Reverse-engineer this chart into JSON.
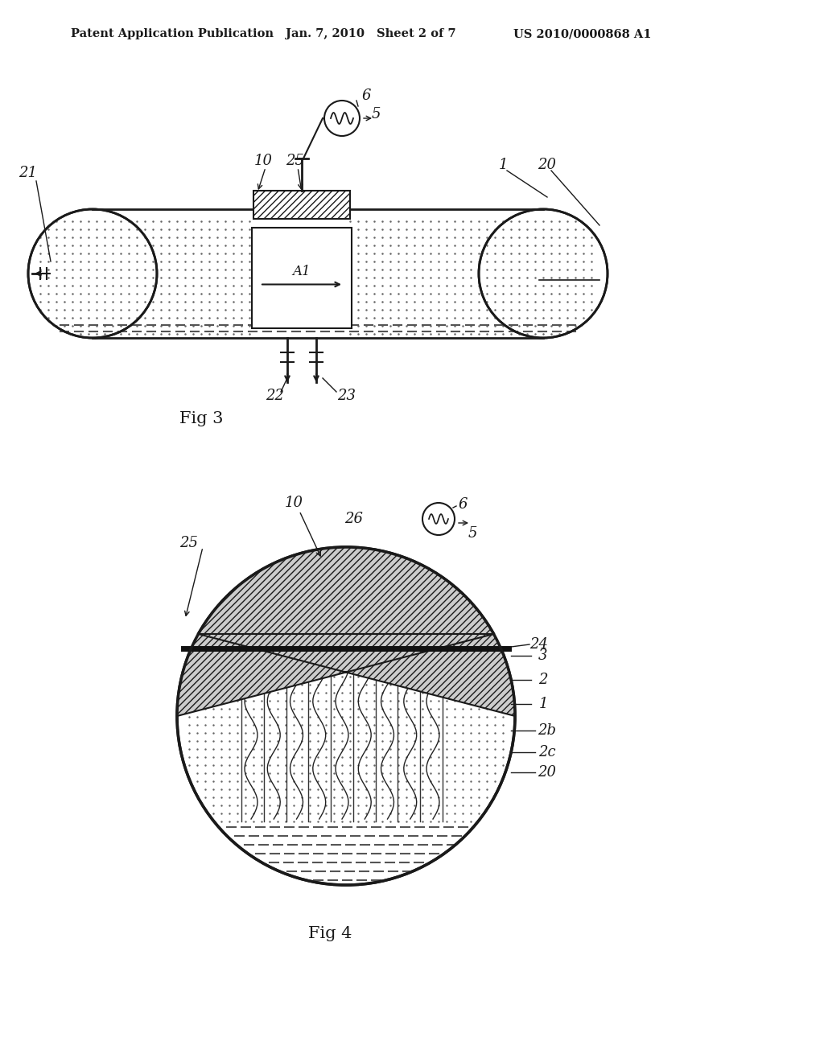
{
  "background_color": "#ffffff",
  "header_text": "Patent Application Publication",
  "header_date": "Jan. 7, 2010",
  "header_sheet": "Sheet 2 of 7",
  "header_patent": "US 2010/0000868 A1",
  "fig3_label": "Fig 3",
  "fig4_label": "Fig 4",
  "line_color": "#1a1a1a"
}
